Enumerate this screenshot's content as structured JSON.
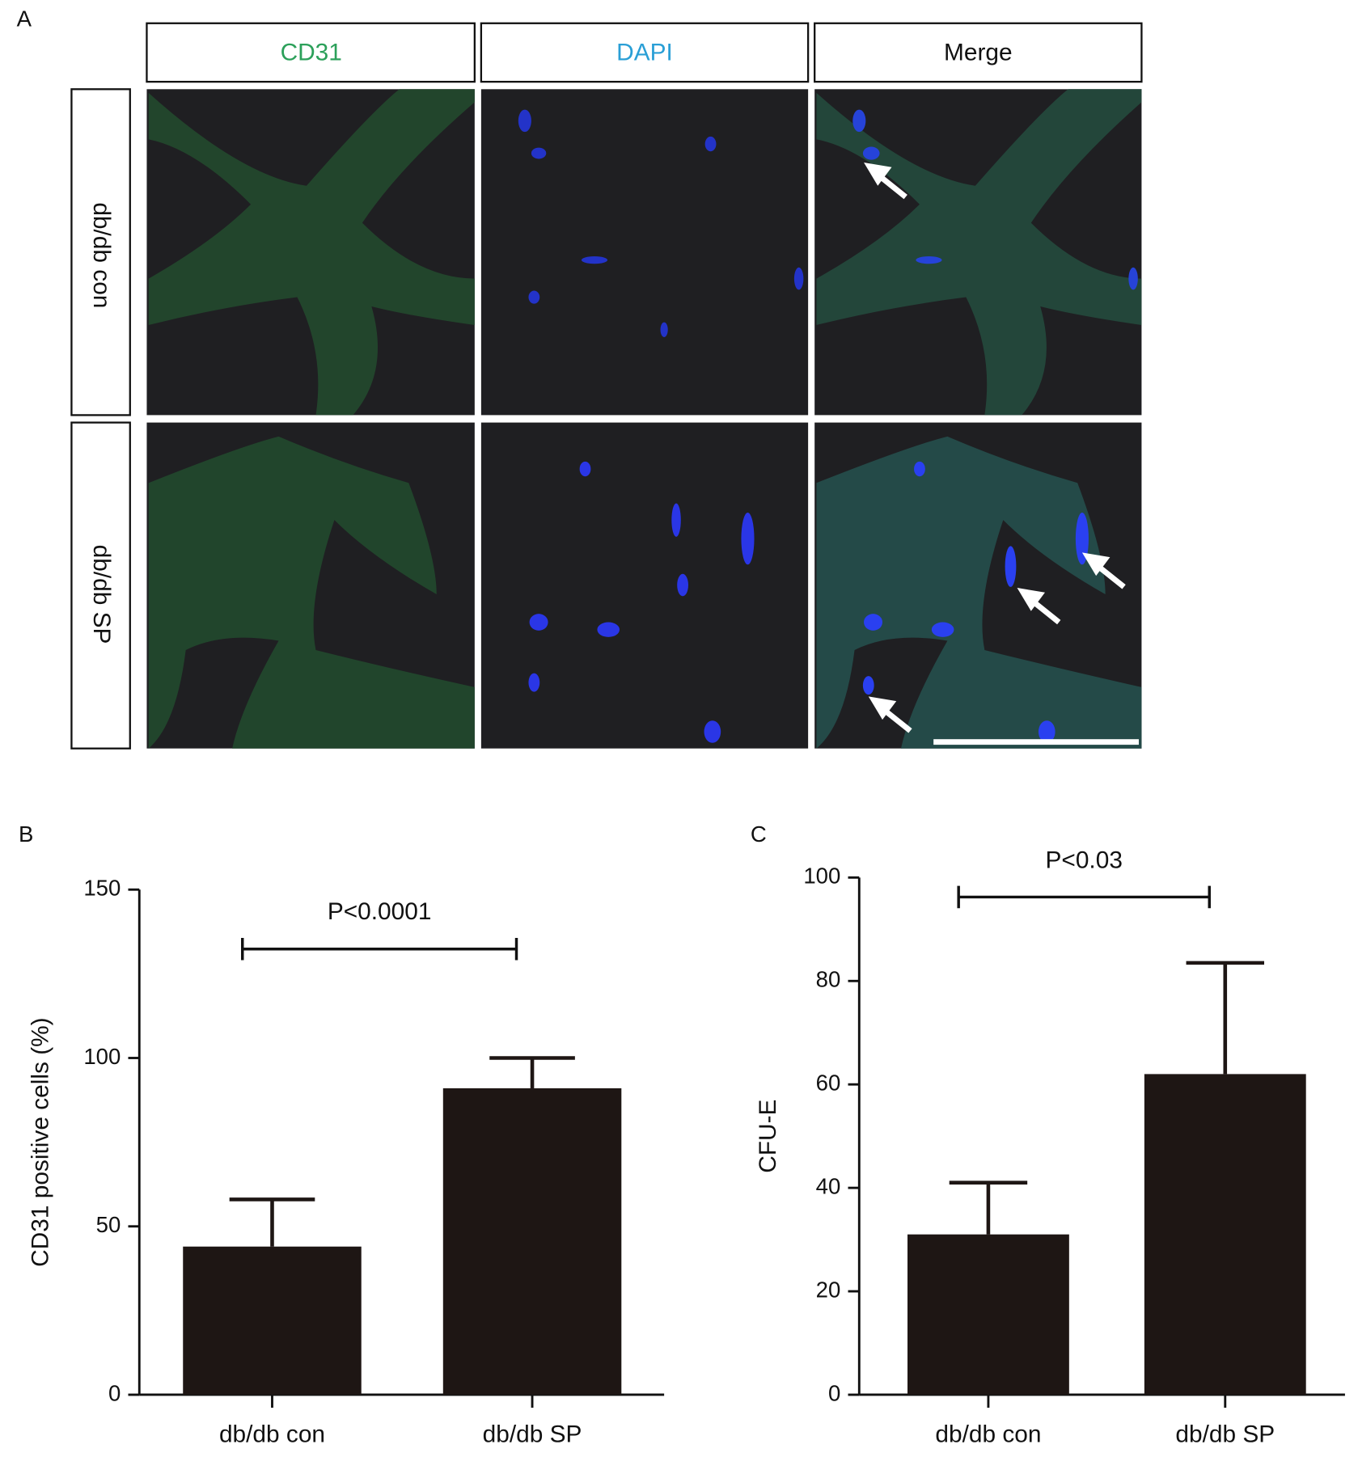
{
  "panel_a": {
    "letter": "A",
    "columns": [
      "CD31",
      "DAPI",
      "Merge"
    ],
    "rows": [
      "db/db con",
      "db/db SP"
    ]
  },
  "chart_data": [
    {
      "type": "bar",
      "panel": "B",
      "ylabel": "CD31 positive cells (%)",
      "categories": [
        "db/db con",
        "db/db SP"
      ],
      "values": [
        44,
        91
      ],
      "errors": [
        14,
        9
      ],
      "color": "#1e1614",
      "ylim": [
        0,
        150
      ],
      "yticks": [
        0,
        50,
        100,
        150
      ],
      "annotation": "P<0.0001"
    },
    {
      "type": "bar",
      "panel": "C",
      "ylabel": "CFU-E",
      "categories": [
        "db/db con",
        "db/db SP"
      ],
      "values": [
        31,
        62
      ],
      "errors": [
        10,
        21.5
      ],
      "color": "#1e1614",
      "ylim": [
        0,
        100
      ],
      "yticks": [
        0,
        20,
        40,
        60,
        80,
        100
      ],
      "annotation": "P<0.03"
    }
  ]
}
